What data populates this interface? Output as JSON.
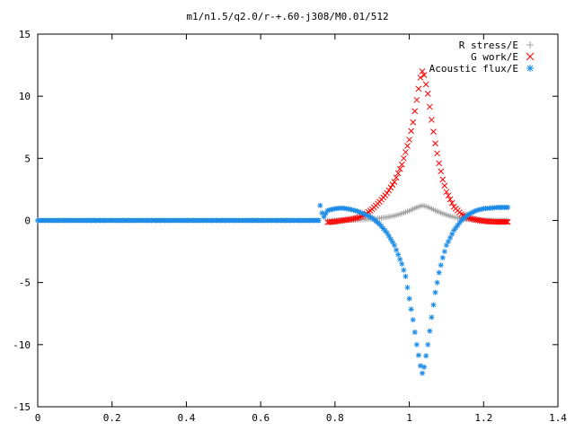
{
  "chart_data": {
    "type": "scatter",
    "title": "m1/n1.5/q2.0/r-+.60-j308/M0.01/512",
    "xlabel": "",
    "ylabel": "",
    "xlim": [
      0,
      1.4
    ],
    "ylim": [
      -15,
      15
    ],
    "xticks": [
      "0",
      "0.2",
      "0.4",
      "0.6",
      "0.8",
      "1",
      "1.2",
      "1.4"
    ],
    "yticks": [
      "-15",
      "-10",
      "-5",
      "0",
      "5",
      "10",
      "15"
    ],
    "legend_position": "top-right",
    "grid": false,
    "series": [
      {
        "name": "R stress/E",
        "marker": "+",
        "color": "#a0a0a0",
        "points": [
          [
            0.78,
            0.0
          ],
          [
            0.8,
            0.01
          ],
          [
            0.82,
            0.02
          ],
          [
            0.84,
            0.03
          ],
          [
            0.86,
            0.05
          ],
          [
            0.88,
            0.08
          ],
          [
            0.9,
            0.12
          ],
          [
            0.92,
            0.18
          ],
          [
            0.94,
            0.26
          ],
          [
            0.96,
            0.38
          ],
          [
            0.98,
            0.55
          ],
          [
            1.0,
            0.78
          ],
          [
            1.02,
            1.05
          ],
          [
            1.035,
            1.2
          ],
          [
            1.05,
            1.08
          ],
          [
            1.07,
            0.8
          ],
          [
            1.09,
            0.55
          ],
          [
            1.11,
            0.35
          ],
          [
            1.13,
            0.2
          ],
          [
            1.15,
            0.1
          ],
          [
            1.18,
            0.04
          ],
          [
            1.21,
            0.01
          ],
          [
            1.24,
            0.0
          ],
          [
            1.265,
            0.0
          ]
        ]
      },
      {
        "name": "G work/E",
        "marker": "x",
        "color": "#ff0000",
        "points": [
          [
            0.78,
            -0.15
          ],
          [
            0.8,
            -0.1
          ],
          [
            0.82,
            0.0
          ],
          [
            0.84,
            0.08
          ],
          [
            0.86,
            0.2
          ],
          [
            0.88,
            0.45
          ],
          [
            0.9,
            0.9
          ],
          [
            0.92,
            1.5
          ],
          [
            0.94,
            2.2
          ],
          [
            0.96,
            3.1
          ],
          [
            0.98,
            4.5
          ],
          [
            1.0,
            6.5
          ],
          [
            1.01,
            7.9
          ],
          [
            1.02,
            9.7
          ],
          [
            1.03,
            11.5
          ],
          [
            1.035,
            12.0
          ],
          [
            1.04,
            11.7
          ],
          [
            1.05,
            10.2
          ],
          [
            1.06,
            8.1
          ],
          [
            1.07,
            6.2
          ],
          [
            1.08,
            4.6
          ],
          [
            1.09,
            3.3
          ],
          [
            1.1,
            2.3
          ],
          [
            1.12,
            1.1
          ],
          [
            1.14,
            0.5
          ],
          [
            1.16,
            0.2
          ],
          [
            1.18,
            0.05
          ],
          [
            1.2,
            -0.05
          ],
          [
            1.22,
            -0.1
          ],
          [
            1.24,
            -0.12
          ],
          [
            1.265,
            -0.12
          ]
        ]
      },
      {
        "name": "Acoustic flux/E",
        "marker": "*",
        "color": "#1e8ce6",
        "points": [
          [
            0.76,
            1.2
          ],
          [
            0.765,
            0.6
          ],
          [
            0.77,
            0.3
          ],
          [
            0.78,
            0.8
          ],
          [
            0.8,
            0.95
          ],
          [
            0.82,
            1.0
          ],
          [
            0.84,
            0.9
          ],
          [
            0.86,
            0.75
          ],
          [
            0.88,
            0.5
          ],
          [
            0.9,
            0.2
          ],
          [
            0.92,
            -0.3
          ],
          [
            0.94,
            -1.0
          ],
          [
            0.96,
            -2.0
          ],
          [
            0.98,
            -3.5
          ],
          [
            0.99,
            -4.5
          ],
          [
            1.0,
            -6.3
          ],
          [
            1.01,
            -8.0
          ],
          [
            1.02,
            -10.0
          ],
          [
            1.03,
            -11.7
          ],
          [
            1.035,
            -12.3
          ],
          [
            1.04,
            -11.8
          ],
          [
            1.05,
            -10.0
          ],
          [
            1.06,
            -7.8
          ],
          [
            1.07,
            -5.8
          ],
          [
            1.08,
            -4.2
          ],
          [
            1.09,
            -3.0
          ],
          [
            1.1,
            -2.0
          ],
          [
            1.12,
            -0.8
          ],
          [
            1.14,
            0.0
          ],
          [
            1.16,
            0.5
          ],
          [
            1.18,
            0.8
          ],
          [
            1.2,
            0.95
          ],
          [
            1.22,
            1.0
          ],
          [
            1.24,
            1.05
          ],
          [
            1.265,
            1.05
          ]
        ]
      }
    ]
  }
}
